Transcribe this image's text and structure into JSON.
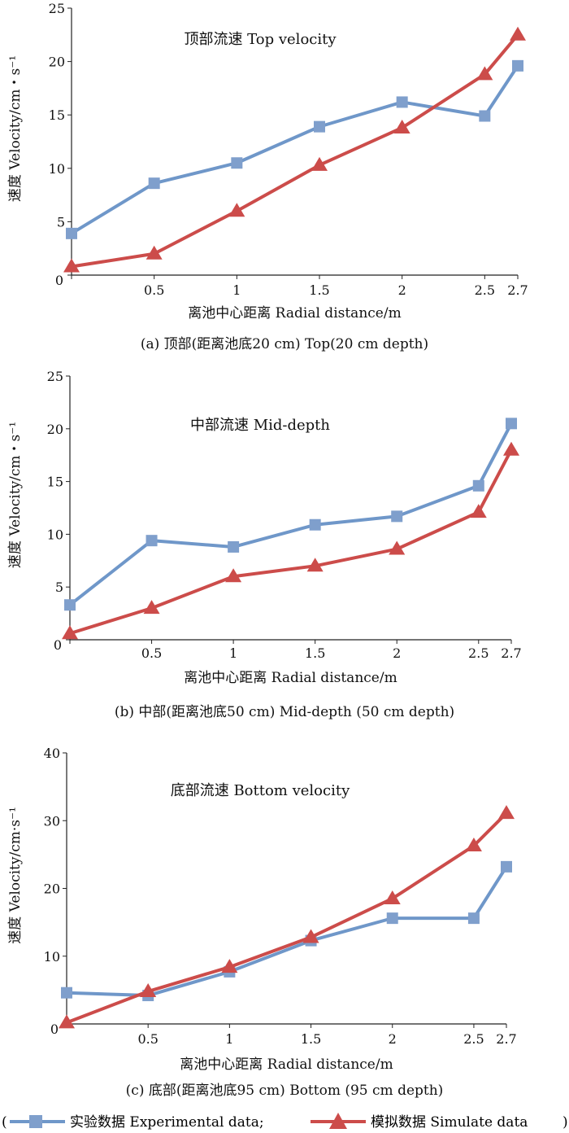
{
  "chart_data": [
    {
      "type": "line",
      "title": "顶部流速 Top velocity",
      "xlabel": "离池中心距离 Radial distance/m",
      "ylabel": "速度 Velocity/cm・s⁻¹",
      "caption": "(a) 顶部(距离池底20 cm) Top(20 cm depth)",
      "x": [
        0,
        0.5,
        1,
        1.5,
        2,
        2.5,
        2.7
      ],
      "x_tick_labels": [
        "0",
        "0.5",
        "1",
        "1.5",
        "2",
        "2.5",
        "2.7"
      ],
      "ylim": [
        0,
        25
      ],
      "y_ticks": [
        0,
        5,
        10,
        15,
        20,
        25
      ],
      "series": [
        {
          "name": "实验数据 Experimental data",
          "values": [
            3.9,
            8.6,
            10.5,
            13.9,
            16.2,
            14.9,
            19.6
          ]
        },
        {
          "name": "模拟数据 Simulate data",
          "values": [
            0.8,
            2.0,
            6.0,
            10.3,
            13.8,
            18.8,
            22.5
          ]
        }
      ]
    },
    {
      "type": "line",
      "title": "中部流速 Mid-depth",
      "xlabel": "离池中心距离 Radial distance/m",
      "ylabel": "速度 Velocity/cm・s⁻¹",
      "caption": "(b) 中部(距离池底50 cm) Mid-depth (50 cm depth)",
      "x": [
        0,
        0.5,
        1,
        1.5,
        2,
        2.5,
        2.7
      ],
      "x_tick_labels": [
        "0",
        "0.5",
        "1",
        "1.5",
        "2",
        "2.5",
        "2.7"
      ],
      "ylim": [
        0,
        25
      ],
      "y_ticks": [
        0,
        5,
        10,
        15,
        20,
        25
      ],
      "series": [
        {
          "name": "实验数据 Experimental data",
          "values": [
            3.3,
            9.4,
            8.8,
            10.9,
            11.7,
            14.6,
            20.5
          ]
        },
        {
          "name": "模拟数据 Simulate data",
          "values": [
            0.6,
            3.0,
            6.0,
            7.0,
            8.6,
            12.1,
            18.0
          ]
        }
      ]
    },
    {
      "type": "line",
      "title": "底部流速 Bottom velocity",
      "xlabel": "离池中心距离 Radial distance/m",
      "ylabel": "速度 Velocity/cm·s⁻¹",
      "caption": "(c) 底部(距离池底95 cm) Bottom (95 cm depth)",
      "x": [
        0,
        0.5,
        1,
        1.5,
        2,
        2.5,
        2.7
      ],
      "x_tick_labels": [
        "0",
        "0.5",
        "1",
        "1.5",
        "2",
        "2.5",
        "2.7"
      ],
      "ylim": [
        0,
        40
      ],
      "y_ticks": [
        0,
        10,
        20,
        30,
        40
      ],
      "series": [
        {
          "name": "实验数据 Experimental data",
          "values": [
            4.6,
            4.2,
            7.7,
            12.3,
            15.6,
            15.6,
            23.2
          ]
        },
        {
          "name": "模拟数据 Simulate data",
          "values": [
            0.2,
            4.8,
            8.4,
            12.8,
            18.5,
            26.3,
            31.1
          ]
        }
      ]
    }
  ],
  "colors": {
    "experimental": "#6f97c9",
    "experimental_marker": "#7f9fcc",
    "simulated": "#cc4c4a",
    "axis": "#222222"
  },
  "legend": {
    "open_paren": "(",
    "close_paren": ")",
    "experimental_label": "实验数据 Experimental data;",
    "simulated_label": "模拟数据 Simulate data"
  }
}
